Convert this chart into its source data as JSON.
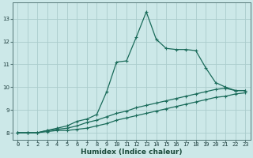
{
  "xlabel": "Humidex (Indice chaleur)",
  "bg_color": "#cce8e8",
  "grid_color": "#aacccc",
  "line_color": "#1a6b5a",
  "lines": [
    {
      "x": [
        0,
        1,
        2,
        3,
        4,
        5,
        6,
        7,
        8,
        9,
        10,
        11,
        12,
        13,
        14,
        15,
        16,
        17,
        18,
        19,
        20,
        21,
        22,
        23
      ],
      "y": [
        8.0,
        8.0,
        8.0,
        8.1,
        8.2,
        8.3,
        8.5,
        8.6,
        8.8,
        9.8,
        11.1,
        11.15,
        12.2,
        13.3,
        12.1,
        11.7,
        11.65,
        11.65,
        11.6,
        10.85,
        10.2,
        10.0,
        9.85,
        9.85
      ]
    },
    {
      "x": [
        0,
        1,
        2,
        3,
        4,
        5,
        6,
        7,
        8,
        9,
        10,
        11,
        12,
        13,
        14,
        15,
        16,
        17,
        18,
        19,
        20,
        21,
        22,
        23
      ],
      "y": [
        8.0,
        8.0,
        8.0,
        8.1,
        8.15,
        8.2,
        8.3,
        8.45,
        8.55,
        8.7,
        8.85,
        8.95,
        9.1,
        9.2,
        9.3,
        9.4,
        9.5,
        9.6,
        9.7,
        9.8,
        9.9,
        9.95,
        9.85,
        9.85
      ]
    },
    {
      "x": [
        0,
        1,
        2,
        3,
        4,
        5,
        6,
        7,
        8,
        9,
        10,
        11,
        12,
        13,
        14,
        15,
        16,
        17,
        18,
        19,
        20,
        21,
        22,
        23
      ],
      "y": [
        8.0,
        8.0,
        8.0,
        8.05,
        8.1,
        8.1,
        8.15,
        8.2,
        8.3,
        8.4,
        8.55,
        8.65,
        8.75,
        8.85,
        8.95,
        9.05,
        9.15,
        9.25,
        9.35,
        9.45,
        9.55,
        9.6,
        9.7,
        9.75
      ]
    }
  ],
  "xlim": [
    -0.5,
    23.5
  ],
  "ylim": [
    7.7,
    13.7
  ],
  "xticks": [
    0,
    1,
    2,
    3,
    4,
    5,
    6,
    7,
    8,
    9,
    10,
    11,
    12,
    13,
    14,
    15,
    16,
    17,
    18,
    19,
    20,
    21,
    22,
    23
  ],
  "yticks": [
    8,
    9,
    10,
    11,
    12,
    13
  ],
  "tick_fontsize": 5.0,
  "xlabel_fontsize": 6.5,
  "xlabel_fontweight": "bold"
}
